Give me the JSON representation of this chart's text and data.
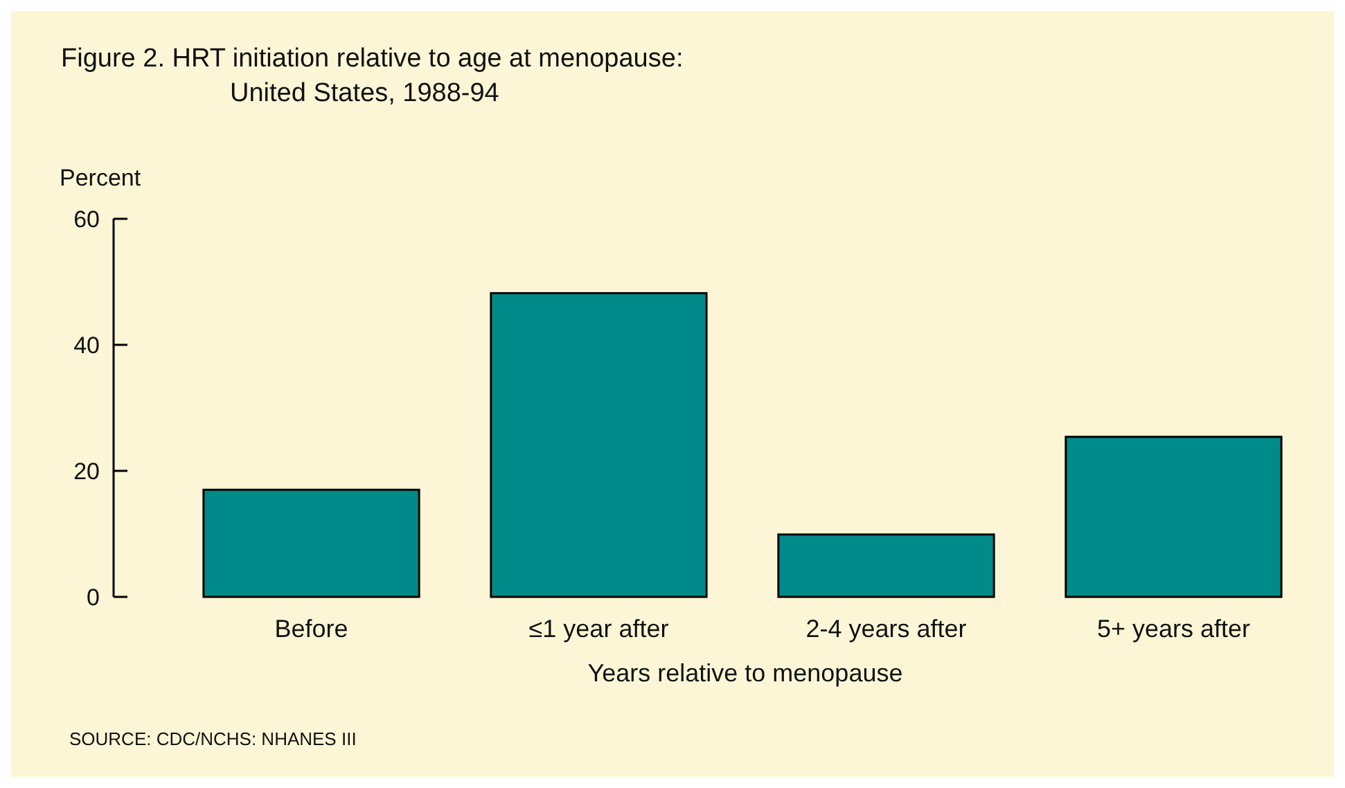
{
  "chart_data": {
    "type": "bar",
    "title": "Figure 2. HRT initiation relative to age at menopause:",
    "subtitle": "United States, 1988-94",
    "ylabel": "Percent",
    "xlabel": "Years relative to menopause",
    "categories": [
      "Before",
      "≤1 year after",
      "2-4 years after",
      "5+ years after"
    ],
    "values": [
      17,
      48.2,
      9.9,
      25.4
    ],
    "color": "#008b8b",
    "ylim": [
      0,
      60
    ],
    "yticks": [
      0,
      20,
      40,
      60
    ],
    "grid": false,
    "annotations": [
      "SOURCE: CDC/NCHS: NHANES III"
    ]
  }
}
